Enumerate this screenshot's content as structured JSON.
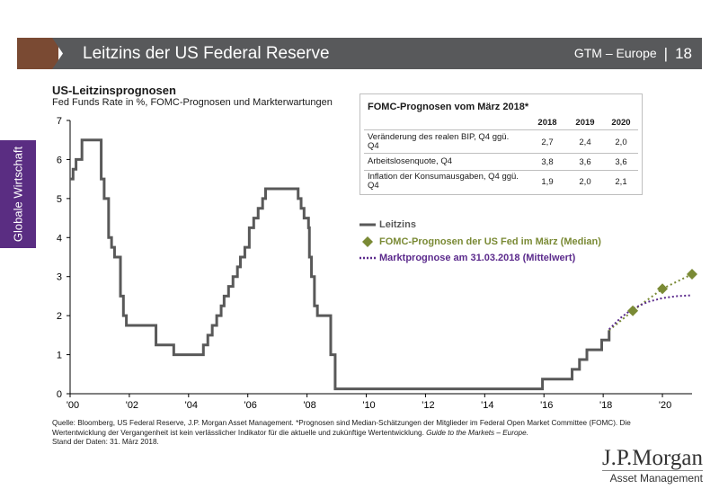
{
  "header": {
    "title": "Leitzins der US Federal Reserve",
    "section": "GTM – Europe",
    "separator": "|",
    "page": "18"
  },
  "side_tab": {
    "label": "Globale Wirtschaft",
    "color": "#5a2d82"
  },
  "colors": {
    "leitzins": "#595959",
    "fomc": "#7a8a35",
    "market": "#5b2a8c",
    "header_bg": "#58595b",
    "header_accent": "#7a4a33"
  },
  "chart_data": {
    "type": "line",
    "title": "US-Leitzinsprognosen",
    "subtitle": "Fed Funds Rate in %, FOMC-Prognosen und Markterwartungen",
    "ylim": [
      0,
      7
    ],
    "yticks": [
      "0",
      "1",
      "2",
      "3",
      "4",
      "5",
      "6",
      "7"
    ],
    "xlim": [
      2000,
      2021
    ],
    "xticks": [
      {
        "value": 2000,
        "label": "'00"
      },
      {
        "value": 2002,
        "label": "'02"
      },
      {
        "value": 2004,
        "label": "'04"
      },
      {
        "value": 2006,
        "label": "'06"
      },
      {
        "value": 2008,
        "label": "'08"
      },
      {
        "value": 2010,
        "label": "'10"
      },
      {
        "value": 2012,
        "label": "'12"
      },
      {
        "value": 2014,
        "label": "'14"
      },
      {
        "value": 2016,
        "label": "'16"
      },
      {
        "value": 2018,
        "label": "'18"
      },
      {
        "value": 2020,
        "label": "'20"
      }
    ],
    "grid": false,
    "legend_position": "center-right",
    "series": [
      {
        "name": "Leitzins",
        "style": "step",
        "points": [
          [
            2000.0,
            5.5
          ],
          [
            2000.1,
            5.75
          ],
          [
            2000.2,
            6.0
          ],
          [
            2000.3,
            6.0
          ],
          [
            2000.4,
            6.5
          ],
          [
            2001.0,
            6.5
          ],
          [
            2001.05,
            5.5
          ],
          [
            2001.15,
            5.0
          ],
          [
            2001.3,
            4.0
          ],
          [
            2001.4,
            3.75
          ],
          [
            2001.5,
            3.5
          ],
          [
            2001.7,
            2.5
          ],
          [
            2001.8,
            2.0
          ],
          [
            2001.9,
            1.75
          ],
          [
            2002.9,
            1.25
          ],
          [
            2003.5,
            1.0
          ],
          [
            2004.5,
            1.25
          ],
          [
            2004.65,
            1.5
          ],
          [
            2004.8,
            1.75
          ],
          [
            2004.95,
            2.0
          ],
          [
            2005.1,
            2.25
          ],
          [
            2005.2,
            2.5
          ],
          [
            2005.35,
            2.75
          ],
          [
            2005.5,
            3.0
          ],
          [
            2005.65,
            3.25
          ],
          [
            2005.75,
            3.5
          ],
          [
            2005.9,
            3.75
          ],
          [
            2006.05,
            4.25
          ],
          [
            2006.2,
            4.5
          ],
          [
            2006.35,
            4.75
          ],
          [
            2006.5,
            5.0
          ],
          [
            2006.6,
            5.25
          ],
          [
            2007.7,
            5.0
          ],
          [
            2007.8,
            4.75
          ],
          [
            2007.9,
            4.5
          ],
          [
            2008.05,
            4.25
          ],
          [
            2008.08,
            3.5
          ],
          [
            2008.15,
            3.0
          ],
          [
            2008.25,
            2.25
          ],
          [
            2008.35,
            2.0
          ],
          [
            2008.8,
            1.0
          ],
          [
            2008.95,
            0.125
          ],
          [
            2015.95,
            0.375
          ],
          [
            2016.95,
            0.625
          ],
          [
            2017.2,
            0.875
          ],
          [
            2017.45,
            1.125
          ],
          [
            2017.95,
            1.375
          ],
          [
            2018.2,
            1.625
          ]
        ]
      },
      {
        "name": "FOMC-Prognosen der US Fed im März (Median)",
        "points": [
          [
            2019.0,
            2.125
          ],
          [
            2020.0,
            2.875
          ],
          [
            2021.0,
            3.375
          ]
        ],
        "ghost_points": [
          [
            2019.0,
            2.125
          ],
          [
            2020.0,
            2.688
          ],
          [
            2021.0,
            3.063
          ]
        ]
      },
      {
        "name": "Marktprognose am 31.03.2018 (Mittelwert)",
        "style": "dotted",
        "points": [
          [
            2018.2,
            1.65
          ],
          [
            2018.6,
            1.95
          ],
          [
            2019.0,
            2.18
          ],
          [
            2019.5,
            2.35
          ],
          [
            2020.0,
            2.45
          ],
          [
            2020.5,
            2.5
          ],
          [
            2021.0,
            2.52
          ]
        ]
      }
    ]
  },
  "fomc_table": {
    "title": "FOMC-Prognosen  vom März 2018*",
    "years": [
      "2018",
      "2019",
      "2020"
    ],
    "rows": [
      {
        "label": "Veränderung des realen BIP, Q4 ggü. Q4",
        "values": [
          "2,7",
          "2,4",
          "2,0"
        ]
      },
      {
        "label": "Arbeitslosenquote, Q4",
        "values": [
          "3,8",
          "3,6",
          "3,6"
        ]
      },
      {
        "label": "Inflation der Konsumausgaben, Q4 ggü. Q4",
        "values": [
          "1,9",
          "2,0",
          "2,1"
        ]
      }
    ]
  },
  "footer": {
    "source": "Quelle: Bloomberg, US Federal Reserve, J.P. Morgan Asset Management. *Prognosen sind Median-Schätzungen der Mitglieder im Federal Open Market Committee (FOMC). Die Wertentwicklung der Vergangenheit ist kein verlässlicher Indikator für die aktuelle und zukünftige Wertentwicklung.",
    "guide": "Guide to the Markets – Europe.",
    "date": "Stand der Daten: 31. März 2018."
  },
  "logo": {
    "line1": "J.P.Morgan",
    "line2": "Asset Management"
  }
}
